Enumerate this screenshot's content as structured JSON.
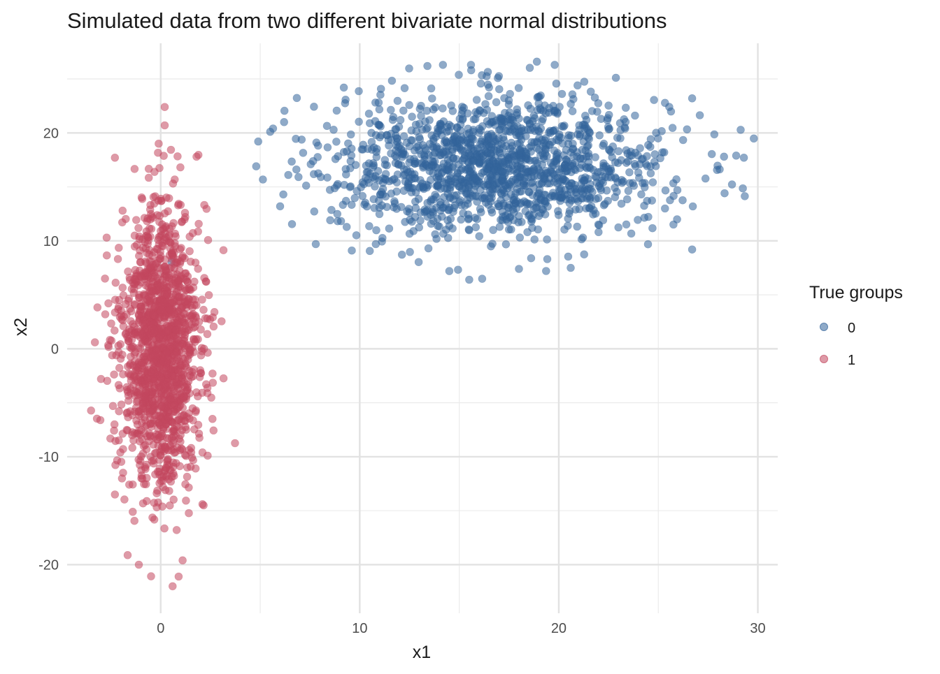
{
  "chart_data": {
    "type": "scatter",
    "title": "Simulated data from two different bivariate normal distributions",
    "xlabel": "x1",
    "ylabel": "x2",
    "xlim": [
      -4.7,
      31.0
    ],
    "ylim": [
      -24.5,
      28.3
    ],
    "x_ticks": [
      0,
      10,
      20,
      30
    ],
    "x_tick_labels": [
      "0",
      "10",
      "20",
      "30"
    ],
    "y_ticks": [
      -20,
      -10,
      0,
      10,
      20
    ],
    "y_tick_labels": [
      "-20",
      "-10",
      "0",
      "10",
      "20"
    ],
    "x_minor_ticks": [
      5,
      15,
      25
    ],
    "y_minor_ticks": [
      -15,
      -5,
      5,
      15,
      25
    ],
    "grid": true,
    "legend": {
      "title": "True groups",
      "position": "right",
      "entries": [
        {
          "label": "0",
          "color": "#33649A"
        },
        {
          "label": "1",
          "color": "#C2475E"
        }
      ]
    },
    "series": [
      {
        "name": "0",
        "color": "#33649A",
        "opacity": 0.55,
        "n_points": 1500,
        "distribution": {
          "mean_x": 17.0,
          "sd_x": 4.2,
          "mean_y": 17.0,
          "sd_y": 3.2
        },
        "representative_points": [
          {
            "x": 4.9,
            "y": 19.2
          },
          {
            "x": 5.5,
            "y": 20.1
          },
          {
            "x": 6.2,
            "y": 21.0
          },
          {
            "x": 6.0,
            "y": 13.2
          },
          {
            "x": 9.2,
            "y": 24.2
          },
          {
            "x": 9.6,
            "y": 9.1
          },
          {
            "x": 13.4,
            "y": 26.2
          },
          {
            "x": 15.6,
            "y": 25.8
          },
          {
            "x": 18.9,
            "y": 26.6
          },
          {
            "x": 14.5,
            "y": 7.2
          },
          {
            "x": 15.5,
            "y": 6.4
          },
          {
            "x": 18.0,
            "y": 7.4
          },
          {
            "x": 20.6,
            "y": 7.5
          },
          {
            "x": 26.7,
            "y": 23.2
          },
          {
            "x": 26.7,
            "y": 9.2
          },
          {
            "x": 28.3,
            "y": 17.8
          },
          {
            "x": 29.3,
            "y": 17.7
          }
        ]
      },
      {
        "name": "1",
        "color": "#C2475E",
        "opacity": 0.55,
        "n_points": 1500,
        "distribution": {
          "mean_x": 0.0,
          "sd_x": 1.0,
          "mean_y": 0.0,
          "sd_y": 6.5
        },
        "representative_points": [
          {
            "x": 0.2,
            "y": 22.4
          },
          {
            "x": 0.2,
            "y": 20.7
          },
          {
            "x": -0.1,
            "y": 19.0
          },
          {
            "x": -3.0,
            "y": -2.8
          },
          {
            "x": -2.8,
            "y": 6.5
          },
          {
            "x": 2.7,
            "y": 3.4
          },
          {
            "x": 2.6,
            "y": -6.5
          },
          {
            "x": 2.1,
            "y": -14.4
          },
          {
            "x": 1.1,
            "y": -19.6
          },
          {
            "x": 0.9,
            "y": -21.1
          },
          {
            "x": 0.6,
            "y": -22.0
          },
          {
            "x": -1.1,
            "y": -20.0
          },
          {
            "x": -2.3,
            "y": 17.7
          },
          {
            "x": 1.8,
            "y": 17.8
          },
          {
            "x": -2.3,
            "y": -13.5
          }
        ]
      }
    ]
  }
}
